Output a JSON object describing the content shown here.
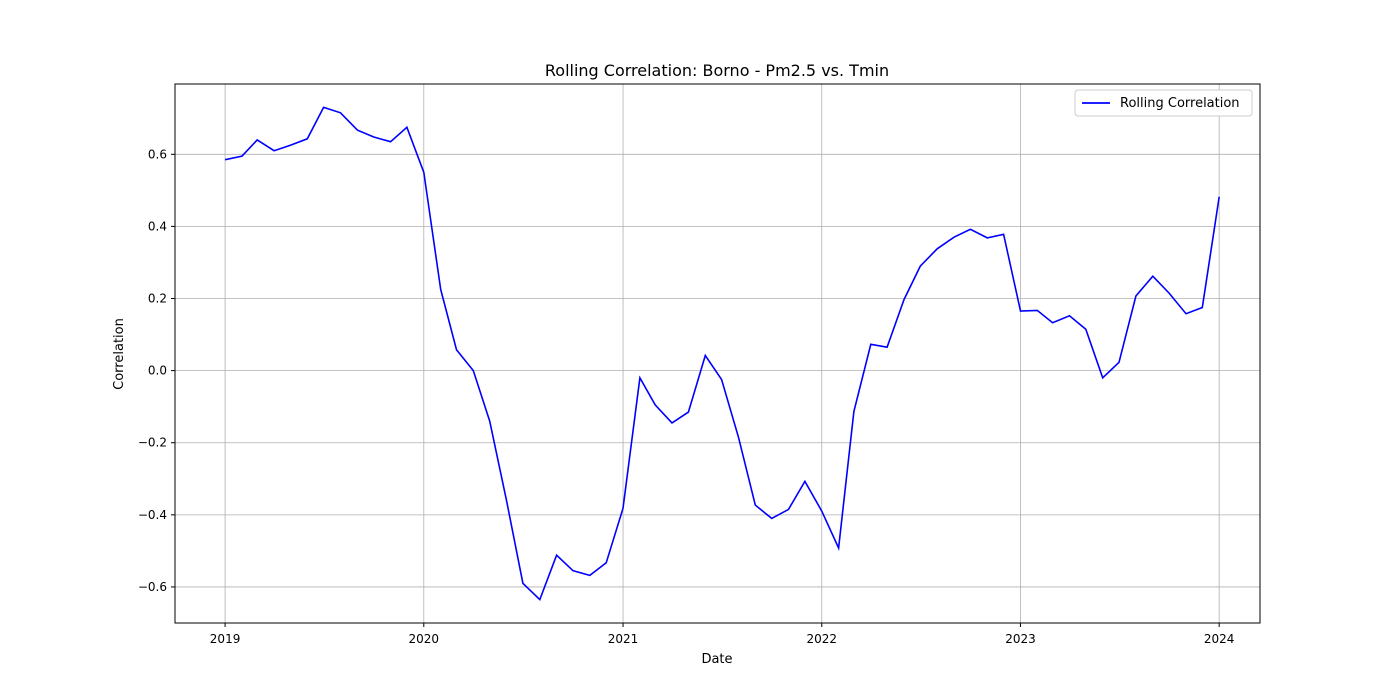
{
  "chart_data": {
    "type": "line",
    "title": "Rolling Correlation: Borno - Pm2.5 vs. Tmin",
    "xlabel": "Date",
    "ylabel": "Correlation",
    "xlim": [
      "2018-10-01",
      "2024-03-16"
    ],
    "ylim": [
      -0.7,
      0.795
    ],
    "x_ticks": [
      "2019",
      "2020",
      "2021",
      "2022",
      "2023",
      "2024"
    ],
    "y_ticks": [
      "−0.6",
      "−0.4",
      "−0.2",
      "0.0",
      "0.2",
      "0.4",
      "0.6"
    ],
    "y_tick_values": [
      -0.6,
      -0.4,
      -0.2,
      0.0,
      0.2,
      0.4,
      0.6
    ],
    "grid": true,
    "legend_position": "top-right",
    "series": [
      {
        "name": "Rolling Correlation",
        "color": "#0000ff",
        "x": [
          "2019-01",
          "2019-02",
          "2019-03",
          "2019-04",
          "2019-05",
          "2019-06",
          "2019-07",
          "2019-08",
          "2019-09",
          "2019-10",
          "2019-11",
          "2019-12",
          "2020-01",
          "2020-02",
          "2020-03",
          "2020-04",
          "2020-05",
          "2020-06",
          "2020-07",
          "2020-08",
          "2020-09",
          "2020-10",
          "2020-11",
          "2020-12",
          "2021-01",
          "2021-02",
          "2021-03",
          "2021-04",
          "2021-05",
          "2021-06",
          "2021-07",
          "2021-08",
          "2021-09",
          "2021-10",
          "2021-11",
          "2021-12",
          "2022-01",
          "2022-02",
          "2022-03",
          "2022-04",
          "2022-05",
          "2022-06",
          "2022-07",
          "2022-08",
          "2022-09",
          "2022-10",
          "2022-11",
          "2022-12",
          "2023-01",
          "2023-02",
          "2023-03",
          "2023-04",
          "2023-05",
          "2023-06",
          "2023-07",
          "2023-08",
          "2023-09",
          "2023-10",
          "2023-11",
          "2023-12",
          "2024-01"
        ],
        "y": [
          0.585,
          0.595,
          0.64,
          0.61,
          0.625,
          0.643,
          0.73,
          0.715,
          0.667,
          0.648,
          0.635,
          0.675,
          0.55,
          0.225,
          0.058,
          0.0,
          -0.14,
          -0.36,
          -0.59,
          -0.635,
          -0.512,
          -0.555,
          -0.568,
          -0.533,
          -0.382,
          -0.02,
          -0.095,
          -0.145,
          -0.115,
          0.042,
          -0.025,
          -0.185,
          -0.373,
          -0.41,
          -0.385,
          -0.307,
          -0.39,
          -0.492,
          -0.113,
          0.073,
          0.065,
          0.197,
          0.29,
          0.338,
          0.37,
          0.392,
          0.368,
          0.378,
          0.165,
          0.167,
          0.133,
          0.152,
          0.115,
          -0.02,
          0.023,
          0.207,
          0.262,
          0.215,
          0.158,
          0.175,
          0.482
        ]
      }
    ]
  }
}
